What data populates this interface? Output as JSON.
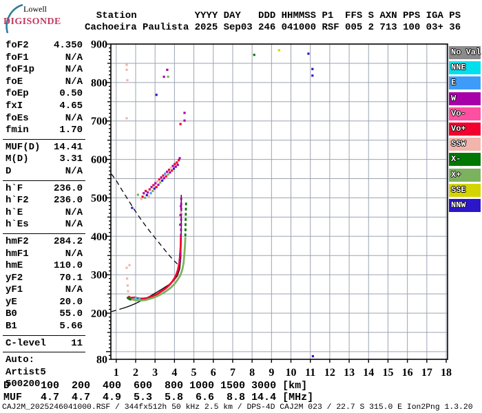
{
  "logo": {
    "line1": "Lowell",
    "line2": "DIGISONDE"
  },
  "header": {
    "columns": [
      {
        "label": "Station",
        "value": "Cachoeira Paulista"
      },
      {
        "label": "YYYY",
        "value": "2025"
      },
      {
        "label": "DAY",
        "value": "Sep03"
      },
      {
        "label": "DDD",
        "value": "246"
      },
      {
        "label": "HHMMSS",
        "value": "041000"
      },
      {
        "label": "P1",
        "value": "RSF"
      },
      {
        "label": "FFS",
        "value": "005"
      },
      {
        "label": "S",
        "value": "2"
      },
      {
        "label": "AXN",
        "value": "713"
      },
      {
        "label": "PPS",
        "value": "100"
      },
      {
        "label": "IGA",
        "value": "03+"
      },
      {
        "label": "PS",
        "value": "36"
      }
    ]
  },
  "left_panel": {
    "groups": [
      [
        {
          "l": "foF2",
          "v": "4.350"
        },
        {
          "l": "foF1",
          "v": "N/A"
        },
        {
          "l": "foF1p",
          "v": "N/A"
        },
        {
          "l": "foE",
          "v": "N/A"
        },
        {
          "l": "foEp",
          "v": "0.50"
        },
        {
          "l": "fxI",
          "v": "4.65"
        },
        {
          "l": "foEs",
          "v": "N/A"
        },
        {
          "l": "fmin",
          "v": "1.70"
        }
      ],
      [
        {
          "l": "MUF(D)",
          "v": "14.41"
        },
        {
          "l": "M(D)",
          "v": "3.31"
        },
        {
          "l": "D",
          "v": "N/A"
        }
      ],
      [
        {
          "l": "h`F",
          "v": "236.0"
        },
        {
          "l": "h`F2",
          "v": "236.0"
        },
        {
          "l": "h`E",
          "v": "N/A"
        },
        {
          "l": "h`Es",
          "v": "N/A"
        }
      ],
      [
        {
          "l": "hmF2",
          "v": "284.2"
        },
        {
          "l": "hmF1",
          "v": "N/A"
        },
        {
          "l": "hmE",
          "v": "110.0"
        },
        {
          "l": "yF2",
          "v": "70.1"
        },
        {
          "l": "yF1",
          "v": "N/A"
        },
        {
          "l": "yE",
          "v": "20.0"
        },
        {
          "l": "B0",
          "v": "55.0"
        },
        {
          "l": "B1",
          "v": "5.66"
        }
      ],
      [
        {
          "l": "C-level",
          "v": "11"
        }
      ]
    ],
    "footer_lines": [
      "Auto:",
      "Artist5",
      "500200"
    ]
  },
  "legend": {
    "items": [
      {
        "label": "No Val",
        "key": "NoVal"
      },
      {
        "label": "NNE",
        "key": "NNE"
      },
      {
        "label": "E",
        "key": "E"
      },
      {
        "label": "W",
        "key": "W"
      },
      {
        "label": "Vo-",
        "key": "Vo-"
      },
      {
        "label": "Vo+",
        "key": "Vo+"
      },
      {
        "label": "SSW",
        "key": "SSW"
      },
      {
        "label": "X-",
        "key": "X-"
      },
      {
        "label": "X+",
        "key": "X+"
      },
      {
        "label": "SSE",
        "key": "SSE"
      },
      {
        "label": "NNW",
        "key": "NNW"
      }
    ]
  },
  "colors": {
    "NoVal": "#8A8A8A",
    "NNE": "#00DFEE",
    "E": "#3F9BFA",
    "W": "#A800A8",
    "Vo-": "#FF4FA0",
    "Vo+": "#F2002E",
    "SSW": "#F2B4AB",
    "X-": "#037703",
    "X+": "#7CB25E",
    "SSE": "#D4D400",
    "NNW": "#2C16C8",
    "grid": "#9CA2B2",
    "axis": "#000000",
    "digisonde_brand": "#C23A60",
    "logo_arc": "#2E7D9B"
  },
  "chart_data": {
    "type": "scatter",
    "title": "",
    "xlabel": "",
    "ylabel": "",
    "x_axis": {
      "unit": "MHz",
      "min": 1,
      "max": 18,
      "ticks": [
        1,
        2,
        3,
        4,
        5,
        6,
        7,
        8,
        9,
        10,
        11,
        12,
        13,
        14,
        15,
        16,
        17,
        18
      ]
    },
    "y_axis": {
      "unit": "km",
      "min": 80,
      "max": 900,
      "labeled_ticks": [
        900,
        800,
        700,
        600,
        500,
        400,
        300,
        200,
        80
      ],
      "grid_step": 50,
      "minor_tick_step": 10
    },
    "traces": [
      {
        "name": "transmission-curve",
        "color": "black",
        "style": "dashed",
        "width": 1.3,
        "points": [
          [
            0.75,
            562
          ],
          [
            1.0,
            545
          ],
          [
            1.3,
            520
          ],
          [
            1.6,
            496
          ],
          [
            1.95,
            468
          ],
          [
            2.3,
            442
          ],
          [
            2.65,
            418
          ],
          [
            3.0,
            396
          ],
          [
            3.35,
            374
          ],
          [
            3.7,
            352
          ],
          [
            3.95,
            338
          ],
          [
            4.15,
            328
          ]
        ]
      },
      {
        "name": "profile-below-fmin",
        "color": "black",
        "style": "dashed",
        "width": 1.3,
        "points": [
          [
            0.75,
            204
          ],
          [
            0.95,
            207
          ],
          [
            1.15,
            210
          ],
          [
            1.3,
            212
          ]
        ]
      },
      {
        "name": "profile",
        "color": "black",
        "style": "solid",
        "width": 1.3,
        "points": [
          [
            1.3,
            212
          ],
          [
            1.6,
            217
          ],
          [
            1.9,
            223
          ],
          [
            2.2,
            230
          ],
          [
            2.5,
            238
          ],
          [
            2.8,
            246
          ],
          [
            3.1,
            255
          ],
          [
            3.4,
            264
          ],
          [
            3.7,
            274
          ],
          [
            3.95,
            284
          ],
          [
            4.15,
            297
          ],
          [
            4.27,
            315
          ],
          [
            4.33,
            345
          ],
          [
            4.345,
            390
          ],
          [
            4.35,
            440
          ],
          [
            4.35,
            508
          ]
        ]
      },
      {
        "name": "o-trace",
        "color": "Vo+",
        "style": "solid",
        "width": 2.8,
        "points": [
          [
            1.62,
            244
          ],
          [
            1.7,
            241
          ],
          [
            1.8,
            240
          ],
          [
            1.95,
            241
          ],
          [
            2.1,
            239
          ],
          [
            2.25,
            238
          ],
          [
            2.4,
            238
          ],
          [
            2.55,
            239
          ],
          [
            2.7,
            241
          ],
          [
            2.85,
            244
          ],
          [
            3.0,
            247
          ],
          [
            3.15,
            251
          ],
          [
            3.3,
            256
          ],
          [
            3.45,
            261
          ],
          [
            3.6,
            267
          ],
          [
            3.75,
            274
          ],
          [
            3.9,
            283
          ],
          [
            4.0,
            291
          ],
          [
            4.1,
            301
          ],
          [
            4.18,
            313
          ],
          [
            4.25,
            330
          ],
          [
            4.29,
            350
          ],
          [
            4.32,
            375
          ],
          [
            4.33,
            400
          ]
        ]
      },
      {
        "name": "o-trace-top",
        "color": "W",
        "style": "dashed",
        "width": 2.8,
        "points": [
          [
            4.33,
            400
          ],
          [
            4.34,
            425
          ],
          [
            4.345,
            450
          ],
          [
            4.35,
            475
          ],
          [
            4.35,
            505
          ]
        ]
      },
      {
        "name": "x-trace",
        "color": "X+",
        "style": "solid",
        "width": 2.8,
        "points": [
          [
            1.66,
            239
          ],
          [
            1.8,
            236
          ],
          [
            1.95,
            234
          ],
          [
            2.1,
            233
          ],
          [
            2.3,
            233
          ],
          [
            2.5,
            234
          ],
          [
            2.7,
            237
          ],
          [
            2.9,
            240
          ],
          [
            3.1,
            244
          ],
          [
            3.3,
            249
          ],
          [
            3.5,
            255
          ],
          [
            3.7,
            262
          ],
          [
            3.85,
            268
          ],
          [
            4.0,
            276
          ],
          [
            4.15,
            286
          ],
          [
            4.3,
            298
          ],
          [
            4.4,
            312
          ],
          [
            4.47,
            330
          ],
          [
            4.51,
            352
          ],
          [
            4.54,
            375
          ],
          [
            4.56,
            398
          ]
        ]
      },
      {
        "name": "x-trace-top",
        "color": "X-",
        "style": "dashed",
        "width": 2.8,
        "points": [
          [
            4.56,
            400
          ],
          [
            4.57,
            425
          ],
          [
            4.58,
            450
          ],
          [
            4.59,
            472
          ],
          [
            4.6,
            492
          ]
        ]
      }
    ],
    "dots": [
      [
        2.12,
        508,
        "X+"
      ],
      [
        2.3,
        497,
        "SSW"
      ],
      [
        2.36,
        503,
        "Vo+"
      ],
      [
        2.42,
        512,
        "W"
      ],
      [
        2.48,
        500,
        "X+"
      ],
      [
        2.52,
        518,
        "Vo+"
      ],
      [
        2.58,
        507,
        "NNW"
      ],
      [
        2.62,
        514,
        "W"
      ],
      [
        2.68,
        504,
        "SSW"
      ],
      [
        2.72,
        522,
        "Vo+"
      ],
      [
        2.78,
        512,
        "E"
      ],
      [
        2.82,
        528,
        "W"
      ],
      [
        2.88,
        518,
        "X+"
      ],
      [
        2.92,
        533,
        "Vo+"
      ],
      [
        2.97,
        524,
        "NNW"
      ],
      [
        3.02,
        538,
        "W"
      ],
      [
        3.07,
        528,
        "Vo+"
      ],
      [
        3.12,
        543,
        "SSW"
      ],
      [
        3.17,
        534,
        "W"
      ],
      [
        3.22,
        548,
        "Vo+"
      ],
      [
        3.27,
        540,
        "X+"
      ],
      [
        3.32,
        553,
        "W"
      ],
      [
        3.37,
        545,
        "NNW"
      ],
      [
        3.42,
        558,
        "Vo+"
      ],
      [
        3.47,
        551,
        "W"
      ],
      [
        3.52,
        563,
        "E"
      ],
      [
        3.57,
        556,
        "Vo+"
      ],
      [
        3.62,
        568,
        "W"
      ],
      [
        3.67,
        561,
        "X+"
      ],
      [
        3.72,
        573,
        "Vo+"
      ],
      [
        3.77,
        566,
        "W"
      ],
      [
        3.82,
        578,
        "SSW"
      ],
      [
        3.87,
        571,
        "Vo+"
      ],
      [
        3.92,
        583,
        "W"
      ],
      [
        3.97,
        576,
        "NNW"
      ],
      [
        4.02,
        588,
        "Vo+"
      ],
      [
        4.07,
        581,
        "W"
      ],
      [
        4.12,
        592,
        "Vo+"
      ],
      [
        4.17,
        586,
        "W"
      ],
      [
        4.22,
        598,
        "Vo+"
      ],
      [
        4.27,
        603,
        "W"
      ],
      [
        1.54,
        846,
        "SSW"
      ],
      [
        1.54,
        833,
        "SSW"
      ],
      [
        1.57,
        806,
        "SSW"
      ],
      [
        1.54,
        707,
        "SSW"
      ],
      [
        3.46,
        815,
        "W"
      ],
      [
        3.63,
        833,
        "W"
      ],
      [
        3.67,
        815,
        "X+"
      ],
      [
        3.07,
        768,
        "NNW"
      ],
      [
        4.52,
        721,
        "W"
      ],
      [
        4.52,
        701,
        "W"
      ],
      [
        4.31,
        692,
        "Vo+"
      ],
      [
        1.82,
        474,
        "NNW"
      ],
      [
        8.11,
        872,
        "X-"
      ],
      [
        9.39,
        884,
        "SSE"
      ],
      [
        10.9,
        875,
        "NNW"
      ],
      [
        11.11,
        835,
        "NNW"
      ],
      [
        11.11,
        818,
        "NNW"
      ],
      [
        11.13,
        88,
        "NNW"
      ],
      [
        1.54,
        318,
        "SSW"
      ],
      [
        1.56,
        290,
        "SSW"
      ],
      [
        1.59,
        272,
        "SSW"
      ],
      [
        1.61,
        257,
        "SSW"
      ],
      [
        1.68,
        325,
        "SSW"
      ],
      [
        4.3,
        430,
        "W"
      ],
      [
        4.31,
        455,
        "W"
      ],
      [
        4.33,
        478,
        "W"
      ],
      [
        4.33,
        462,
        "SSW"
      ],
      [
        4.3,
        352,
        "W"
      ],
      [
        4.28,
        338,
        "W"
      ],
      [
        1.6,
        240,
        "X-"
      ],
      [
        1.65,
        238,
        "X-"
      ],
      [
        1.72,
        236,
        "X-"
      ],
      [
        2.2,
        237,
        "NNE"
      ],
      [
        2.0,
        239,
        "NNE"
      ]
    ]
  },
  "bottom": {
    "distance_row": {
      "label": "D",
      "values": [
        "100",
        "200",
        "400",
        "600",
        "800",
        "1000",
        "1500",
        "3000"
      ],
      "unit": "[km]"
    },
    "muf_row": {
      "label": "MUF",
      "values": [
        "4.7",
        "4.7",
        "4.9",
        "5.3",
        "5.8",
        "6.6",
        "8.8",
        "14.4"
      ],
      "unit": "[MHz]"
    },
    "footer": "CAJ2M_2025246041000.RSF / 344fx512h 50 kHz 2.5 km / DPS-4D CAJ2M 023 / 22.7 S 315.0 E Ion2Png 1.3.20"
  }
}
